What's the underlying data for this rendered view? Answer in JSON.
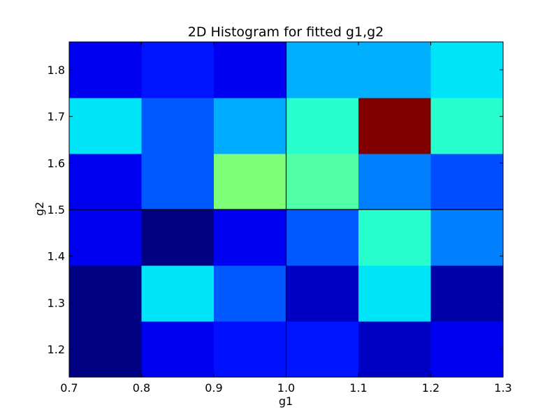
{
  "chart_data": {
    "type": "heatmap",
    "title": "2D Histogram for fitted g1,g2",
    "xlabel": "g1",
    "ylabel": "g2",
    "xlim": [
      0.7,
      1.3
    ],
    "ylim": [
      1.14,
      1.86
    ],
    "x_edges": [
      0.7,
      0.8,
      0.9,
      1.0,
      1.1,
      1.2,
      1.3
    ],
    "y_edges": [
      1.14,
      1.26,
      1.38,
      1.5,
      1.62,
      1.74,
      1.86
    ],
    "x_ticks": [
      0.7,
      0.8,
      0.9,
      1.0,
      1.1,
      1.2,
      1.3
    ],
    "x_tick_labels": [
      "0.7",
      "0.8",
      "0.9",
      "1.0",
      "1.1",
      "1.2",
      "1.3"
    ],
    "y_ticks": [
      1.2,
      1.3,
      1.4,
      1.5,
      1.6,
      1.7,
      1.8
    ],
    "y_tick_labels": [
      "1.2",
      "1.3",
      "1.4",
      "1.5",
      "1.6",
      "1.7",
      "1.8"
    ],
    "colormap": "jet",
    "cells_rows_bottom_to_top": [
      [
        "#000080",
        "#0000f1",
        "#0010ff",
        "#0014ff",
        "#0000c4",
        "#0000f1"
      ],
      [
        "#000080",
        "#00e4f8",
        "#0058ff",
        "#0000c4",
        "#00e4f8",
        "#0000a8"
      ],
      [
        "#0000f1",
        "#000080",
        "#0000f1",
        "#0058ff",
        "#29ffce",
        "#0080ff"
      ],
      [
        "#0000f1",
        "#0058ff",
        "#7dff7a",
        "#50ffa6",
        "#0080ff",
        "#004cff"
      ],
      [
        "#00e4f8",
        "#0058ff",
        "#00acff",
        "#29ffce",
        "#800000",
        "#29ffce"
      ],
      [
        "#0000f1",
        "#0014ff",
        "#0000f1",
        "#00b0ff",
        "#00b0ff",
        "#00e4f8"
      ]
    ],
    "reference_lines": {
      "vertical_x": 1.0,
      "horizontal_y": 1.5,
      "color": "#000000"
    },
    "grid": false,
    "legend": "none"
  }
}
